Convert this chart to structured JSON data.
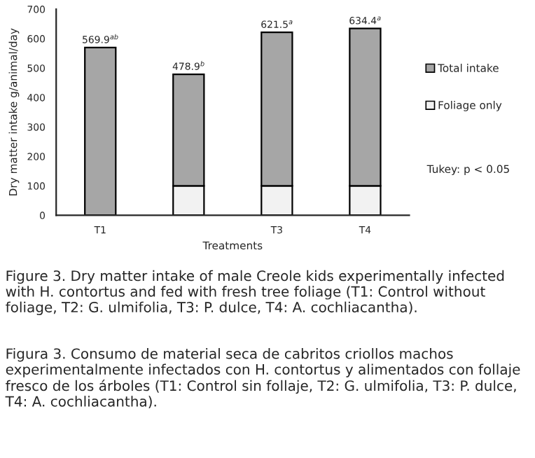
{
  "chart_data": {
    "type": "bar",
    "stacked": true,
    "xlabel": "Treatments",
    "ylabel": "Dry matter intake g/animal/day",
    "categories": [
      "T1",
      null,
      "T3",
      "T4"
    ],
    "series": [
      {
        "name": "Foliage only",
        "color": "#f2f2f2",
        "values": [
          null,
          100,
          100,
          100
        ]
      },
      {
        "name": "Total intake",
        "color": "#a6a6a6",
        "values": [
          569.9,
          378.9,
          521.5,
          534.4
        ]
      }
    ],
    "totals": [
      "569.9$^{ab}$",
      "478.9$^{b}$",
      "621.5$^{a}$",
      "634.4$^{a}$"
    ],
    "ylim": [
      0,
      700
    ],
    "yticks": [
      0,
      100,
      200,
      300,
      400,
      500,
      600,
      700
    ],
    "grid": false,
    "legend": "right",
    "annotations": [
      "Tukey: p < 0.05",
      "Figure 3. Dry matter intake of male Creole kids experimentally infected with H. contortus and fed with fresh tree foliage (T1: Control without foliage, T2: G. ulmifolia, T3: P. dulce, T4: A. cochliacantha).",
      "Figura 3. Consumo de material seca de cabritos criollos machos experimentalmente infectados con H. contortus y alimentados con follaje fresco de los árboles (T1: Control sin follaje, T2: G. ulmifolia, T3: P. dulce, T4: A. cochliacantha)."
    ]
  }
}
